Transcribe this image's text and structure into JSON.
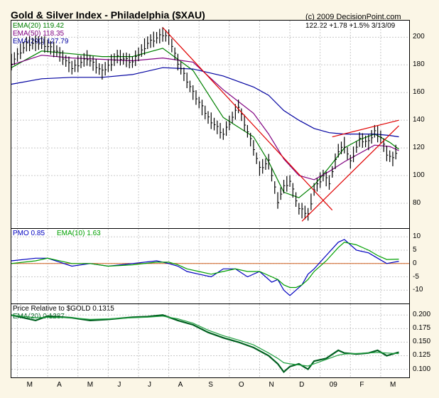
{
  "page": {
    "title": "Gold & Silver Index - Philadelphia ($XAU)",
    "copyright": "(c) 2009 DecisionPoint.com",
    "quote": "122.22  +1.78  +1.5%  3/13/09"
  },
  "colors": {
    "background": "#fbf6e6",
    "price_bars": "#000000",
    "ema20": "#008000",
    "ema50": "#800080",
    "ema200": "#0000a0",
    "trendlines": "#e00000",
    "pmo": "#0000c0",
    "pmo_ema": "#00a000",
    "zero_line": "#d06020",
    "relative": "#006020"
  },
  "x_axis": {
    "months": [
      "M",
      "A",
      "M",
      "J",
      "J",
      "A",
      "S",
      "O",
      "N",
      "D",
      "09",
      "F",
      "M"
    ]
  },
  "chart_data": [
    {
      "type": "line",
      "title": "Gold & Silver Index - Philadelphia ($XAU)",
      "legend": [
        {
          "label": "EMA(20) 119.42",
          "color": "#008000"
        },
        {
          "label": "EMA(50) 118.35",
          "color": "#800080"
        },
        {
          "label": "EMA(200) 127.79",
          "color": "#0000a0"
        }
      ],
      "y_ticks": [
        80,
        100,
        120,
        140,
        160,
        180,
        200
      ],
      "ylim": [
        62,
        212
      ],
      "series": [
        {
          "name": "EMA(20)",
          "x": [
            0,
            10,
            20,
            30,
            40,
            50,
            60,
            70,
            80,
            85,
            90,
            95,
            100,
            105,
            110,
            115,
            120,
            125,
            128
          ],
          "values": [
            178,
            190,
            188,
            186,
            186,
            192,
            176,
            142,
            128,
            110,
            88,
            84,
            93,
            106,
            120,
            126,
            130,
            124,
            119
          ]
        },
        {
          "name": "EMA(50)",
          "x": [
            0,
            10,
            20,
            30,
            40,
            50,
            60,
            70,
            80,
            85,
            90,
            95,
            100,
            105,
            110,
            115,
            120,
            125,
            128
          ],
          "values": [
            180,
            187,
            185,
            184,
            183,
            185,
            182,
            162,
            145,
            130,
            112,
            100,
            97,
            103,
            110,
            116,
            122,
            121,
            118
          ]
        },
        {
          "name": "EMA(200)",
          "x": [
            0,
            10,
            20,
            30,
            40,
            50,
            60,
            70,
            80,
            85,
            90,
            95,
            100,
            105,
            110,
            115,
            120,
            125,
            128
          ],
          "values": [
            166,
            170,
            171,
            171,
            173,
            178,
            177,
            172,
            164,
            158,
            147,
            140,
            134,
            131,
            130,
            130,
            130,
            129,
            128
          ]
        },
        {
          "name": "price",
          "x": [
            0,
            5,
            10,
            15,
            20,
            25,
            30,
            35,
            40,
            45,
            50,
            52,
            55,
            60,
            65,
            70,
            75,
            80,
            82,
            85,
            88,
            90,
            92,
            95,
            98,
            100,
            103,
            105,
            108,
            110,
            112,
            115,
            118,
            120,
            122,
            124,
            126,
            128
          ],
          "values": [
            182,
            195,
            196,
            190,
            178,
            185,
            175,
            186,
            182,
            196,
            202,
            200,
            182,
            160,
            142,
            130,
            150,
            120,
            105,
            110,
            82,
            92,
            96,
            76,
            72,
            90,
            100,
            95,
            118,
            122,
            110,
            126,
            124,
            132,
            128,
            116,
            112,
            122
          ]
        }
      ],
      "trendlines": [
        {
          "from": [
            50,
            207
          ],
          "to": [
            106,
            75
          ]
        },
        {
          "from": [
            96,
            67
          ],
          "to": [
            128,
            136
          ]
        },
        {
          "from": [
            106,
            128
          ],
          "to": [
            128,
            140
          ]
        }
      ]
    },
    {
      "type": "line",
      "legend": [
        {
          "label": "PMO 0.85",
          "color": "#0000c0"
        },
        {
          "label": "EMA(10) 1.63",
          "color": "#00a000"
        }
      ],
      "y_ticks": [
        -10,
        -5,
        0,
        5,
        10
      ],
      "ylim": [
        -15,
        13
      ],
      "series": [
        {
          "name": "PMO",
          "x": [
            0,
            8,
            12,
            20,
            26,
            32,
            40,
            48,
            52,
            55,
            58,
            62,
            66,
            70,
            74,
            78,
            82,
            86,
            88,
            90,
            92,
            94,
            96,
            98,
            100,
            104,
            108,
            110,
            114,
            118,
            121,
            124,
            128
          ],
          "values": [
            1,
            2,
            2,
            -1,
            0,
            -1,
            0,
            1,
            0,
            -1,
            -3,
            -4,
            -5,
            -2,
            -2,
            -5,
            -3,
            -7,
            -6,
            -10,
            -12,
            -10,
            -8,
            -4,
            -2,
            3,
            8,
            9,
            5,
            4,
            2,
            0,
            0.85
          ]
        },
        {
          "name": "EMA(10)",
          "x": [
            0,
            8,
            12,
            20,
            26,
            32,
            40,
            48,
            52,
            55,
            58,
            62,
            66,
            70,
            74,
            78,
            82,
            86,
            88,
            90,
            92,
            94,
            96,
            98,
            100,
            104,
            108,
            110,
            114,
            118,
            121,
            124,
            128
          ],
          "values": [
            0,
            1,
            2,
            0,
            0,
            -1,
            -0.5,
            0.5,
            0.5,
            -0.5,
            -2,
            -3,
            -4,
            -3,
            -2,
            -3,
            -3,
            -5,
            -6,
            -8,
            -9,
            -9,
            -8,
            -6,
            -3,
            1,
            6,
            8,
            7,
            5,
            3,
            1.5,
            1.63
          ]
        }
      ]
    },
    {
      "type": "line",
      "title": "Price Relative to $GOLD",
      "legend": [
        {
          "label": "Price Relative to $GOLD  0.1315",
          "color": "#000000"
        },
        {
          "label": "EMA(20) 0.1287",
          "color": "#006020"
        }
      ],
      "y_ticks": [
        0.1,
        0.125,
        0.15,
        0.175,
        0.2
      ],
      "ylim": [
        0.085,
        0.22
      ],
      "series": [
        {
          "name": "ratio",
          "x": [
            0,
            8,
            12,
            20,
            26,
            32,
            40,
            45,
            50,
            55,
            60,
            65,
            70,
            75,
            80,
            85,
            88,
            90,
            92,
            95,
            98,
            100,
            104,
            108,
            110,
            114,
            118,
            121,
            124,
            128
          ],
          "values": [
            0.2,
            0.19,
            0.198,
            0.195,
            0.19,
            0.192,
            0.196,
            0.197,
            0.2,
            0.19,
            0.182,
            0.168,
            0.158,
            0.15,
            0.14,
            0.125,
            0.11,
            0.095,
            0.105,
            0.11,
            0.1,
            0.115,
            0.12,
            0.135,
            0.13,
            0.128,
            0.13,
            0.135,
            0.125,
            0.1315
          ]
        },
        {
          "name": "EMA(20)",
          "x": [
            0,
            8,
            12,
            20,
            26,
            32,
            40,
            45,
            50,
            55,
            60,
            65,
            70,
            75,
            80,
            85,
            88,
            90,
            92,
            95,
            98,
            100,
            104,
            108,
            110,
            114,
            118,
            121,
            124,
            128
          ],
          "values": [
            0.2,
            0.195,
            0.196,
            0.195,
            0.192,
            0.193,
            0.195,
            0.196,
            0.198,
            0.193,
            0.185,
            0.172,
            0.162,
            0.154,
            0.145,
            0.13,
            0.12,
            0.112,
            0.11,
            0.108,
            0.106,
            0.11,
            0.118,
            0.126,
            0.128,
            0.129,
            0.13,
            0.131,
            0.13,
            0.1287
          ]
        }
      ]
    }
  ]
}
